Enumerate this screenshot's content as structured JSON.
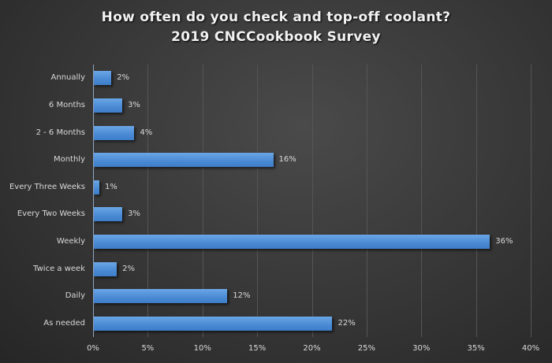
{
  "chart_data": {
    "type": "bar",
    "orientation": "horizontal",
    "title": "How often do you check and top-off coolant?",
    "subtitle": "2019 CNCCookbook Survey",
    "xlabel": "",
    "ylabel": "",
    "xlim": [
      0,
      40
    ],
    "x_ticks": [
      "0%",
      "5%",
      "10%",
      "15%",
      "20%",
      "25%",
      "30%",
      "35%",
      "40%"
    ],
    "grid": true,
    "legend": null,
    "bar_color": "#4a8ad4",
    "categories": [
      "Annually",
      "6 Months",
      "2 - 6 Months",
      "Monthly",
      "Every Three Weeks",
      "Every Two Weeks",
      "Weekly",
      "Twice a week",
      "Daily",
      "As needed"
    ],
    "values": [
      2,
      3,
      4,
      16,
      1,
      3,
      36,
      2,
      12,
      22
    ],
    "bar_widths_pct": [
      1.6,
      2.6,
      3.7,
      16.4,
      0.5,
      2.6,
      36.2,
      2.1,
      12.2,
      21.8
    ],
    "value_labels": [
      "2%",
      "3%",
      "4%",
      "16%",
      "1%",
      "3%",
      "36%",
      "2%",
      "12%",
      "22%"
    ]
  }
}
